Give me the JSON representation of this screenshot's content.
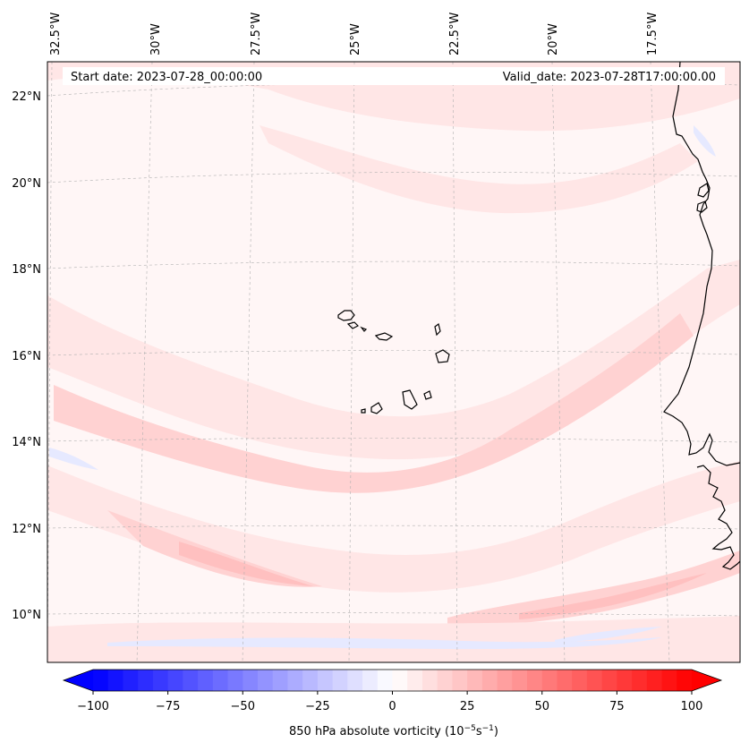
{
  "header": {
    "start_date": "Start date: 2023-07-28_00:00:00",
    "valid_date": "Valid_date: 2023-07-28T17:00:00.00"
  },
  "longitude_labels": [
    "32.5°W",
    "30°W",
    "27.5°W",
    "25°W",
    "22.5°W",
    "20°W",
    "17.5°W"
  ],
  "latitude_labels": [
    "22°N",
    "20°N",
    "18°N",
    "16°N",
    "14°N",
    "12°N",
    "10°N"
  ],
  "colorbar": {
    "tick_labels": [
      "−100",
      "−75",
      "−50",
      "−25",
      "0",
      "25",
      "50",
      "75",
      "100"
    ],
    "tick_values": [
      -100,
      -75,
      -50,
      -25,
      0,
      25,
      50,
      75,
      100
    ],
    "range": [
      -100,
      100
    ],
    "label": "850 hPa absolute vorticity (10",
    "label_sup1": "−5",
    "label_mid": "s",
    "label_sup2": "−1",
    "label_end": ")",
    "min_color": "#0000ff",
    "mid_color": "#ffffff",
    "max_color": "#ff0000"
  },
  "field": {
    "background": "#fff6f6",
    "light_pink": "#ffe6e6",
    "medium_pink": "#ffd2d2",
    "deeper_pink": "#ffc0c0",
    "light_blue": "#e6e9ff",
    "coast_color": "#000000"
  }
}
